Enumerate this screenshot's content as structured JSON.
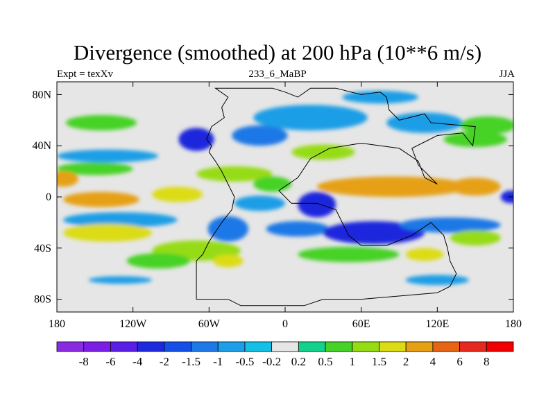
{
  "title": "Divergence (smoothed) at 200 hPa (10**6 m/s)",
  "left_label": "Expt = texXv",
  "center_label": "233_6_MaBP",
  "right_label": "JJA",
  "chart_data": {
    "type": "heatmap",
    "variable": "Divergence (smoothed) at 200 hPa",
    "units": "10**6 m/s",
    "xlim": [
      -180,
      180
    ],
    "ylim": [
      -90,
      90
    ],
    "x_ticks": [
      {
        "value": -180,
        "label": "180"
      },
      {
        "value": -120,
        "label": "120W"
      },
      {
        "value": -60,
        "label": "60W"
      },
      {
        "value": 0,
        "label": "0"
      },
      {
        "value": 60,
        "label": "60E"
      },
      {
        "value": 120,
        "label": "120E"
      },
      {
        "value": 180,
        "label": "180"
      }
    ],
    "y_ticks": [
      {
        "value": 80,
        "label": "80N"
      },
      {
        "value": 40,
        "label": "40N"
      },
      {
        "value": 0,
        "label": "0"
      },
      {
        "value": -40,
        "label": "40S"
      },
      {
        "value": -80,
        "label": "80S"
      }
    ],
    "colorbar": {
      "colors": [
        "#8a2be2",
        "#7a1ee6",
        "#5a1ee6",
        "#1e28dc",
        "#1450e6",
        "#1e78e6",
        "#1e9ee6",
        "#14c0e6",
        "#e6e6e6",
        "#14d28c",
        "#46d228",
        "#96dc14",
        "#dcdc14",
        "#e6a014",
        "#e66414",
        "#e6281e",
        "#f00000"
      ],
      "labels": [
        "-8",
        "-6",
        "-4",
        "-2",
        "-1.5",
        "-1",
        "-0.5",
        "-0.2",
        "0.2",
        "0.5",
        "1",
        "1.5",
        "2",
        "4",
        "6",
        "8"
      ]
    },
    "features": [
      {
        "lon": -70,
        "lat": 45,
        "lw": 14,
        "lh": 9,
        "v": -2.2
      },
      {
        "lon": -20,
        "lat": 48,
        "lw": 22,
        "lh": 8,
        "v": -1.2
      },
      {
        "lon": 20,
        "lat": 62,
        "lw": 45,
        "lh": 10,
        "v": -1.0
      },
      {
        "lon": 75,
        "lat": 78,
        "lw": 30,
        "lh": 5,
        "v": -1.0
      },
      {
        "lon": 110,
        "lat": 58,
        "lw": 30,
        "lh": 8,
        "v": -0.7
      },
      {
        "lon": -145,
        "lat": 58,
        "lw": 28,
        "lh": 6,
        "v": 0.6
      },
      {
        "lon": 160,
        "lat": 56,
        "lw": 22,
        "lh": 7,
        "v": 0.6
      },
      {
        "lon": 30,
        "lat": 35,
        "lw": 25,
        "lh": 6,
        "v": 1.2
      },
      {
        "lon": 150,
        "lat": 45,
        "lw": 25,
        "lh": 6,
        "v": 0.8
      },
      {
        "lon": -140,
        "lat": 32,
        "lw": 40,
        "lh": 5,
        "v": -0.7
      },
      {
        "lon": -40,
        "lat": 18,
        "lw": 30,
        "lh": 6,
        "v": 1.0
      },
      {
        "lon": -150,
        "lat": 22,
        "lw": 30,
        "lh": 5,
        "v": 0.8
      },
      {
        "lon": -175,
        "lat": 14,
        "lw": 12,
        "lh": 6,
        "v": 2.5
      },
      {
        "lon": 85,
        "lat": 8,
        "lw": 60,
        "lh": 8,
        "v": 3.5
      },
      {
        "lon": 150,
        "lat": 8,
        "lw": 20,
        "lh": 7,
        "v": 2.2
      },
      {
        "lon": -145,
        "lat": -2,
        "lw": 30,
        "lh": 6,
        "v": 2.0
      },
      {
        "lon": -85,
        "lat": 2,
        "lw": 20,
        "lh": 6,
        "v": 1.5
      },
      {
        "lon": -10,
        "lat": 10,
        "lw": 15,
        "lh": 6,
        "v": 0.9
      },
      {
        "lon": 25,
        "lat": -6,
        "lw": 15,
        "lh": 10,
        "v": -2.5
      },
      {
        "lon": 10,
        "lat": -25,
        "lw": 25,
        "lh": 6,
        "v": -1.5
      },
      {
        "lon": -45,
        "lat": -25,
        "lw": 16,
        "lh": 10,
        "v": -1.2
      },
      {
        "lon": -20,
        "lat": -5,
        "lw": 20,
        "lh": 6,
        "v": -1.0
      },
      {
        "lon": -130,
        "lat": -18,
        "lw": 45,
        "lh": 6,
        "v": -0.8
      },
      {
        "lon": 70,
        "lat": -28,
        "lw": 40,
        "lh": 9,
        "v": -3.0
      },
      {
        "lon": 130,
        "lat": -22,
        "lw": 40,
        "lh": 6,
        "v": -1.5
      },
      {
        "lon": 178,
        "lat": 0,
        "lw": 8,
        "lh": 5,
        "v": -2.5
      },
      {
        "lon": -140,
        "lat": -28,
        "lw": 35,
        "lh": 7,
        "v": 1.5
      },
      {
        "lon": 150,
        "lat": -32,
        "lw": 20,
        "lh": 6,
        "v": 1.0
      },
      {
        "lon": -70,
        "lat": -42,
        "lw": 35,
        "lh": 8,
        "v": 1.0
      },
      {
        "lon": 50,
        "lat": -45,
        "lw": 40,
        "lh": 6,
        "v": 0.7
      },
      {
        "lon": -100,
        "lat": -50,
        "lw": 25,
        "lh": 6,
        "v": 0.6
      },
      {
        "lon": -45,
        "lat": -50,
        "lw": 12,
        "lh": 5,
        "v": 1.5
      },
      {
        "lon": 110,
        "lat": -45,
        "lw": 15,
        "lh": 5,
        "v": 1.5
      },
      {
        "lon": -130,
        "lat": -65,
        "lw": 25,
        "lh": 3,
        "v": -0.8
      },
      {
        "lon": 120,
        "lat": -65,
        "lw": 25,
        "lh": 4,
        "v": -0.8
      }
    ],
    "coastline": [
      [
        [
          -55,
          85
        ],
        [
          -45,
          78
        ],
        [
          -50,
          70
        ],
        [
          -48,
          62
        ],
        [
          -58,
          55
        ],
        [
          -62,
          45
        ],
        [
          -58,
          40
        ],
        [
          -60,
          35
        ],
        [
          -55,
          28
        ],
        [
          -50,
          20
        ],
        [
          -45,
          10
        ],
        [
          -40,
          0
        ],
        [
          -42,
          -10
        ],
        [
          -50,
          -20
        ],
        [
          -60,
          -35
        ],
        [
          -65,
          -45
        ],
        [
          -70,
          -50
        ],
        [
          -70,
          -80
        ],
        [
          -45,
          -80
        ],
        [
          -35,
          -85
        ],
        [
          15,
          -85
        ],
        [
          30,
          -80
        ],
        [
          60,
          -80
        ],
        [
          120,
          -75
        ],
        [
          130,
          -70
        ],
        [
          135,
          -60
        ],
        [
          130,
          -50
        ],
        [
          128,
          -40
        ],
        [
          125,
          -30
        ],
        [
          115,
          -20
        ],
        [
          100,
          -30
        ],
        [
          80,
          -38
        ],
        [
          60,
          -38
        ],
        [
          50,
          -30
        ],
        [
          45,
          -20
        ],
        [
          40,
          -10
        ],
        [
          25,
          -5
        ],
        [
          5,
          -5
        ],
        [
          -5,
          5
        ],
        [
          10,
          15
        ],
        [
          20,
          30
        ],
        [
          35,
          38
        ],
        [
          60,
          42
        ],
        [
          90,
          38
        ],
        [
          105,
          28
        ],
        [
          110,
          15
        ],
        [
          120,
          10
        ],
        [
          105,
          25
        ],
        [
          100,
          38
        ],
        [
          120,
          48
        ],
        [
          140,
          50
        ],
        [
          148,
          40
        ],
        [
          150,
          55
        ],
        [
          115,
          58
        ],
        [
          110,
          65
        ],
        [
          90,
          60
        ],
        [
          82,
          68
        ],
        [
          80,
          78
        ],
        [
          75,
          82
        ],
        [
          60,
          80
        ],
        [
          40,
          85
        ],
        [
          20,
          85
        ],
        [
          10,
          78
        ],
        [
          0,
          82
        ],
        [
          -10,
          85
        ],
        [
          -30,
          85
        ],
        [
          -55,
          85
        ]
      ]
    ]
  }
}
